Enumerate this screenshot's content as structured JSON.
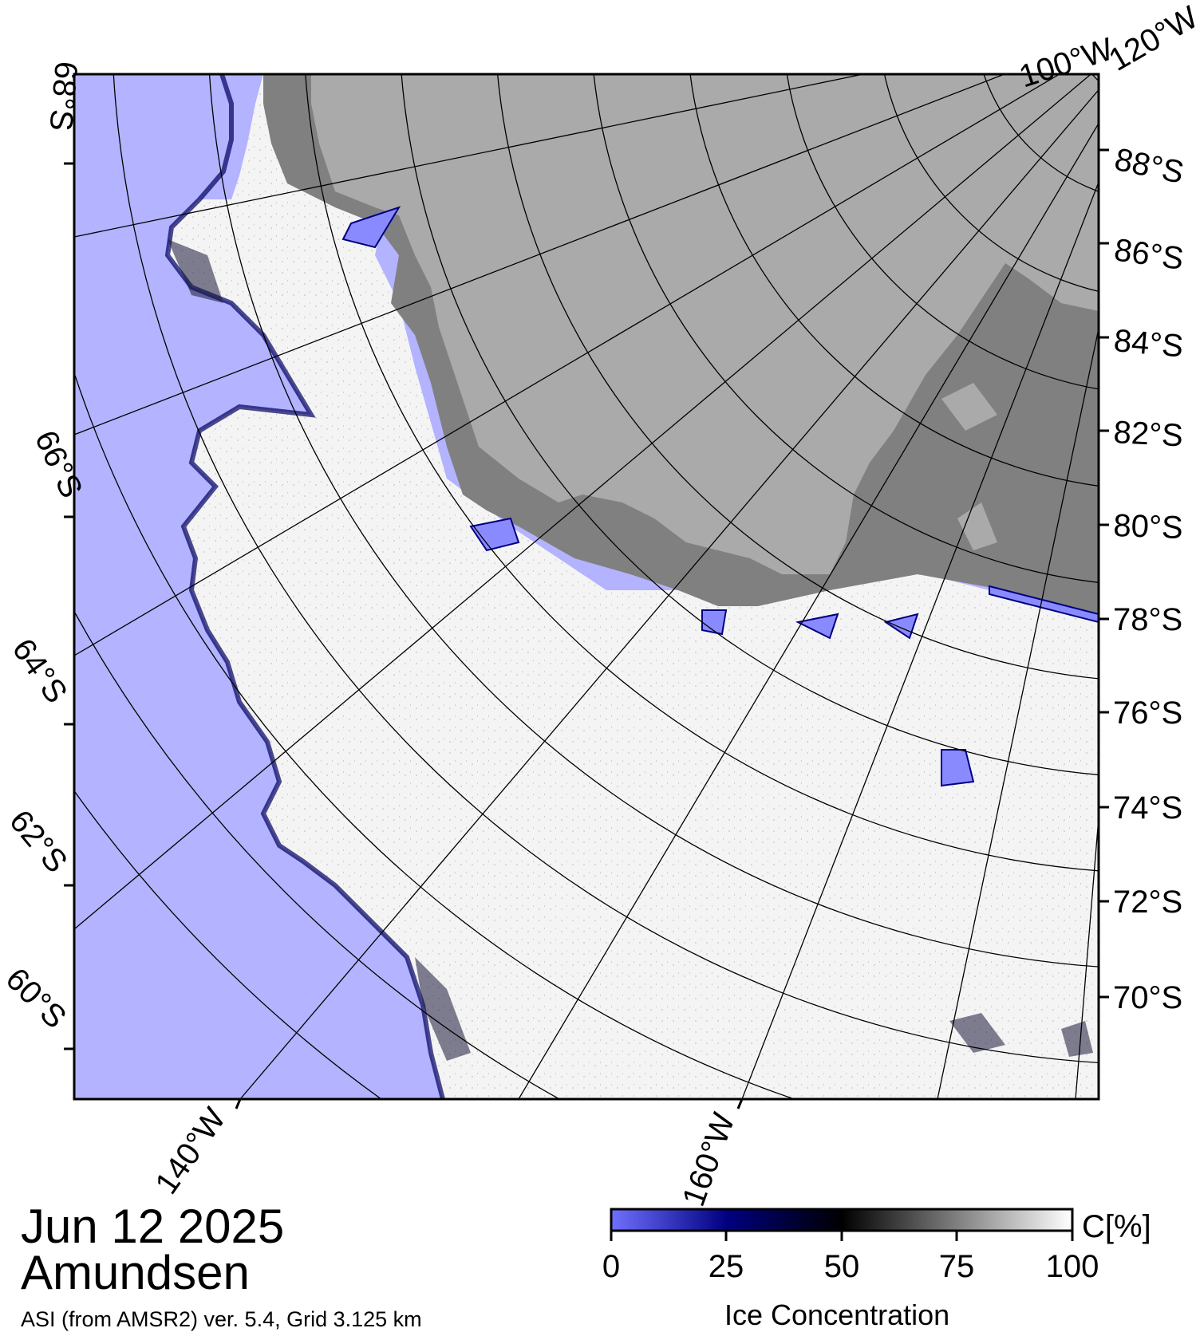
{
  "map": {
    "date": "Jun 12 2025",
    "region": "Amundsen",
    "product": "ASI (from AMSR2) ver. 5.4,  Grid 3.125 km",
    "longitude_labels": [
      "140°W",
      "160°W",
      "100°W",
      "120°W"
    ],
    "latitude_labels_right": [
      "88°S",
      "86°S",
      "84°S",
      "82°S",
      "80°S",
      "78°S",
      "76°S",
      "74°S",
      "72°S",
      "70°S"
    ],
    "latitude_labels_left": [
      "68°S",
      "66°S",
      "64°S",
      "62°S",
      "60°S"
    ],
    "colors": {
      "open_water": "#b3b3ff",
      "ice_100": "#ffffff",
      "ice_50": "#000000",
      "ice_25": "#000080",
      "ice_0": "#7070ff",
      "ice_shelf": "#808080",
      "land": "#aaaaaa",
      "graticule": "#000000"
    }
  },
  "colorbar": {
    "title": "Ice Concentration",
    "unit": "C[%]",
    "ticks": [
      "0",
      "25",
      "50",
      "75",
      "100"
    ]
  }
}
